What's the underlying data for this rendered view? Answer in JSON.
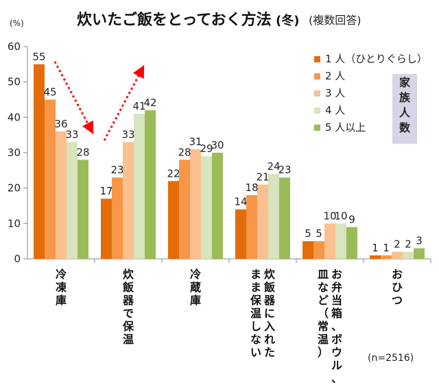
{
  "chart_data": {
    "type": "bar",
    "title": "炊いたご飯をとっておく方法",
    "title_season": "(冬)",
    "subtitle": "(複数回答)",
    "ylabel": "(%)",
    "ylim": [
      0,
      60
    ],
    "yticks": [
      0,
      10,
      20,
      30,
      40,
      50,
      60
    ],
    "grid": false,
    "legend_position": "top-right",
    "legend_group_label": "家族人数",
    "categories": [
      [
        "冷凍庫"
      ],
      [
        "炊飯器で保温"
      ],
      [
        "冷蔵庫"
      ],
      [
        "炊飯器に入れた",
        "まま保温しない"
      ],
      [
        "お弁当箱、ボウル、",
        "皿など（常温）"
      ],
      [
        "おひつ"
      ]
    ],
    "series": [
      {
        "name": "1 人（ひとりぐらし）",
        "color": "#E46C0A",
        "values": [
          55,
          17,
          22,
          14,
          5,
          1
        ]
      },
      {
        "name": "2 人",
        "color": "#F79646",
        "values": [
          45,
          23,
          28,
          18,
          5,
          1
        ]
      },
      {
        "name": "3 人",
        "color": "#FAC090",
        "values": [
          36,
          33,
          31,
          21,
          10,
          2
        ]
      },
      {
        "name": "4 人",
        "color": "#D7E4BD",
        "values": [
          33,
          41,
          29,
          24,
          10,
          2
        ]
      },
      {
        "name": "5 人以上",
        "color": "#9BBB59",
        "values": [
          28,
          42,
          30,
          23,
          9,
          3
        ]
      }
    ],
    "annotation": "(n=2516)"
  }
}
